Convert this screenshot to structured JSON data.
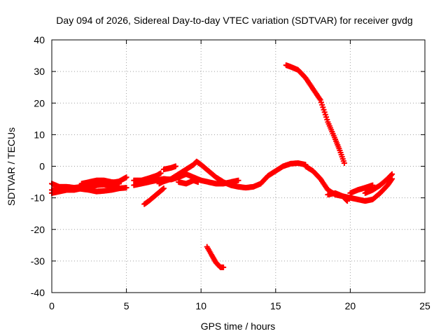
{
  "chart_data": {
    "type": "scatter",
    "title": "Day 094 of 2026, Sidereal Day-to-day VTEC variation (SDTVAR) for receiver gvdg",
    "xlabel": "GPS time / hours",
    "ylabel": "SDTVAR / TECUs",
    "xlim": [
      0,
      25
    ],
    "ylim": [
      -40,
      40
    ],
    "xticks": [
      "0",
      "5",
      "10",
      "15",
      "20",
      "25"
    ],
    "yticks": [
      "-40",
      "-30",
      "-20",
      "-10",
      "0",
      "10",
      "20",
      "30",
      "40"
    ],
    "grid": true,
    "marker": "plus",
    "color": "#ff0000",
    "series": [
      {
        "name": "arc-1",
        "points": [
          [
            0.0,
            -7.5
          ],
          [
            0.5,
            -7.8
          ],
          [
            1.0,
            -7.2
          ],
          [
            1.5,
            -6.8
          ],
          [
            2.0,
            -6.5
          ],
          [
            2.5,
            -6.2
          ],
          [
            3.0,
            -6.0
          ],
          [
            3.5,
            -5.5
          ],
          [
            4.0,
            -5.2
          ],
          [
            4.5,
            -4.8
          ],
          [
            5.0,
            -3.5
          ]
        ]
      },
      {
        "name": "arc-2",
        "points": [
          [
            0.0,
            -5.5
          ],
          [
            0.5,
            -6.5
          ],
          [
            1.0,
            -6.5
          ],
          [
            1.5,
            -6.8
          ],
          [
            2.0,
            -7.2
          ],
          [
            2.5,
            -7.5
          ],
          [
            3.0,
            -8.0
          ],
          [
            3.5,
            -7.8
          ],
          [
            4.0,
            -7.5
          ],
          [
            4.5,
            -7.0
          ],
          [
            5.0,
            -6.8
          ]
        ]
      },
      {
        "name": "arc-3",
        "points": [
          [
            0.0,
            -8.5
          ],
          [
            0.5,
            -8.0
          ],
          [
            1.0,
            -7.5
          ],
          [
            1.5,
            -7.5
          ],
          [
            2.0,
            -7.0
          ],
          [
            2.5,
            -6.5
          ],
          [
            3.0,
            -6.0
          ],
          [
            3.5,
            -5.8
          ],
          [
            4.0,
            -6.2
          ],
          [
            4.5,
            -5.5
          ]
        ]
      },
      {
        "name": "arc-4",
        "points": [
          [
            2.0,
            -5.5
          ],
          [
            2.5,
            -5.0
          ],
          [
            3.0,
            -4.5
          ],
          [
            3.5,
            -4.5
          ],
          [
            4.0,
            -5.0
          ],
          [
            4.5,
            -5.2
          ]
        ]
      },
      {
        "name": "arc-5",
        "points": [
          [
            5.5,
            -6.0
          ],
          [
            6.0,
            -5.5
          ],
          [
            6.5,
            -5.0
          ],
          [
            7.0,
            -4.5
          ],
          [
            7.5,
            -4.0
          ],
          [
            8.0,
            -4.2
          ],
          [
            8.5,
            -3.5
          ],
          [
            9.0,
            -2.5
          ],
          [
            9.5,
            -3.5
          ],
          [
            10.0,
            -4.5
          ],
          [
            10.5,
            -5.0
          ],
          [
            11.0,
            -5.5
          ],
          [
            11.5,
            -5.5
          ],
          [
            12.0,
            -5.0
          ],
          [
            12.5,
            -4.5
          ]
        ]
      },
      {
        "name": "arc-6",
        "points": [
          [
            5.5,
            -4.5
          ],
          [
            6.0,
            -4.5
          ],
          [
            6.5,
            -3.8
          ],
          [
            7.0,
            -3.0
          ],
          [
            7.3,
            -2.2
          ]
        ]
      },
      {
        "name": "arc-7",
        "points": [
          [
            7.2,
            -5.5
          ],
          [
            7.5,
            -4.8
          ],
          [
            8.0,
            -4.0
          ],
          [
            8.5,
            -2.5
          ],
          [
            9.0,
            -1.0
          ],
          [
            9.5,
            0.5
          ],
          [
            9.7,
            1.5
          ],
          [
            10.0,
            0.5
          ],
          [
            10.5,
            -1.5
          ],
          [
            11.0,
            -3.5
          ],
          [
            11.5,
            -5.0
          ],
          [
            12.0,
            -6.0
          ],
          [
            12.5,
            -6.5
          ],
          [
            13.0,
            -6.8
          ],
          [
            13.5,
            -6.5
          ],
          [
            14.0,
            -5.5
          ],
          [
            14.5,
            -3.0
          ],
          [
            15.0,
            -1.5
          ],
          [
            15.5,
            0.0
          ],
          [
            16.0,
            0.8
          ],
          [
            16.5,
            1.0
          ],
          [
            17.0,
            0.5
          ]
        ]
      },
      {
        "name": "arc-8",
        "points": [
          [
            7.5,
            -1.0
          ],
          [
            8.0,
            -0.5
          ],
          [
            8.3,
            0.0
          ]
        ]
      },
      {
        "name": "arc-9",
        "points": [
          [
            8.5,
            -5.0
          ],
          [
            9.0,
            -5.5
          ],
          [
            9.5,
            -4.5
          ],
          [
            9.8,
            -5.0
          ]
        ]
      },
      {
        "name": "arc-10",
        "points": [
          [
            6.2,
            -12.0
          ],
          [
            6.5,
            -11.0
          ],
          [
            7.0,
            -9.0
          ],
          [
            7.5,
            -7.0
          ]
        ]
      },
      {
        "name": "arc-11",
        "points": [
          [
            17.0,
            0.0
          ],
          [
            17.5,
            -1.5
          ],
          [
            18.0,
            -4.0
          ],
          [
            18.5,
            -7.5
          ],
          [
            19.0,
            -9.0
          ],
          [
            19.5,
            -9.5
          ],
          [
            20.0,
            -10.0
          ],
          [
            20.5,
            -10.5
          ],
          [
            21.0,
            -11.0
          ],
          [
            21.5,
            -10.5
          ],
          [
            22.0,
            -8.5
          ],
          [
            22.5,
            -6.0
          ],
          [
            22.8,
            -4.0
          ]
        ]
      },
      {
        "name": "arc-12",
        "points": [
          [
            18.5,
            -9.0
          ],
          [
            19.0,
            -8.5
          ],
          [
            19.5,
            -9.5
          ],
          [
            19.8,
            -11.0
          ]
        ]
      },
      {
        "name": "arc-13",
        "points": [
          [
            20.0,
            -8.5
          ],
          [
            20.5,
            -7.5
          ],
          [
            21.0,
            -6.8
          ],
          [
            21.5,
            -6.0
          ]
        ]
      },
      {
        "name": "arc-14",
        "points": [
          [
            21.0,
            -8.5
          ],
          [
            21.5,
            -7.5
          ],
          [
            22.0,
            -6.0
          ],
          [
            22.5,
            -4.0
          ],
          [
            22.8,
            -2.5
          ]
        ]
      },
      {
        "name": "arc-15",
        "points": [
          [
            15.7,
            32.0
          ],
          [
            16.0,
            31.5
          ],
          [
            16.5,
            30.5
          ],
          [
            17.0,
            28.0
          ],
          [
            17.5,
            24.5
          ],
          [
            18.0,
            21.0
          ],
          [
            18.5,
            14.0
          ],
          [
            19.0,
            8.5
          ],
          [
            19.3,
            5.0
          ],
          [
            19.6,
            1.0
          ]
        ]
      },
      {
        "name": "arc-16",
        "points": [
          [
            10.4,
            -25.5
          ],
          [
            10.7,
            -28.0
          ],
          [
            11.0,
            -30.5
          ],
          [
            11.3,
            -32.0
          ],
          [
            11.5,
            -32.0
          ]
        ]
      }
    ]
  }
}
